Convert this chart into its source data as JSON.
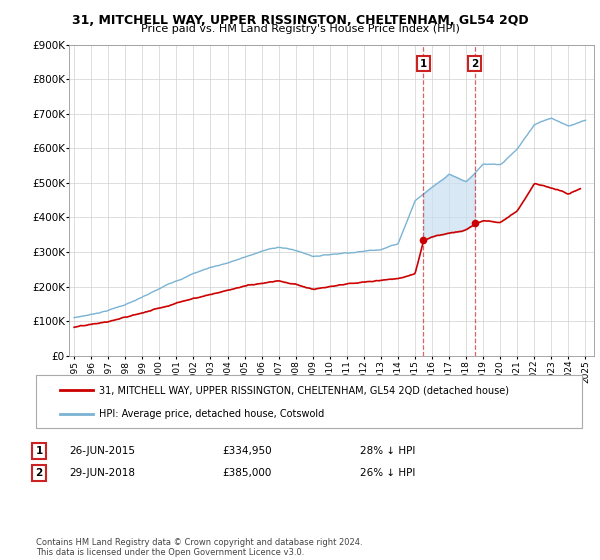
{
  "title": "31, MITCHELL WAY, UPPER RISSINGTON, CHELTENHAM, GL54 2QD",
  "subtitle": "Price paid vs. HM Land Registry's House Price Index (HPI)",
  "legend_line1": "31, MITCHELL WAY, UPPER RISSINGTON, CHELTENHAM, GL54 2QD (detached house)",
  "legend_line2": "HPI: Average price, detached house, Cotswold",
  "transaction1_date": "26-JUN-2015",
  "transaction1_price": "£334,950",
  "transaction1_hpi": "28% ↓ HPI",
  "transaction1_x": 2015.49,
  "transaction1_y": 334950,
  "transaction2_date": "29-JUN-2018",
  "transaction2_price": "£385,000",
  "transaction2_hpi": "26% ↓ HPI",
  "transaction2_x": 2018.49,
  "transaction2_y": 385000,
  "footer": "Contains HM Land Registry data © Crown copyright and database right 2024.\nThis data is licensed under the Open Government Licence v3.0.",
  "hpi_color": "#7ab3d4",
  "price_color": "#cc0000",
  "marker_box_color": "#cc2222",
  "shade_color": "#c8dff0",
  "ylim": [
    0,
    900000
  ],
  "xlim_min": 1994.7,
  "xlim_max": 2025.5,
  "yticks": [
    0,
    100000,
    200000,
    300000,
    400000,
    500000,
    600000,
    700000,
    800000,
    900000
  ],
  "ytick_labels": [
    "£0",
    "£100K",
    "£200K",
    "£300K",
    "£400K",
    "£500K",
    "£600K",
    "£700K",
    "£800K",
    "£900K"
  ],
  "xticks": [
    1995,
    1996,
    1997,
    1998,
    1999,
    2000,
    2001,
    2002,
    2003,
    2004,
    2005,
    2006,
    2007,
    2008,
    2009,
    2010,
    2011,
    2012,
    2013,
    2014,
    2015,
    2016,
    2017,
    2018,
    2019,
    2020,
    2021,
    2022,
    2023,
    2024,
    2025
  ]
}
